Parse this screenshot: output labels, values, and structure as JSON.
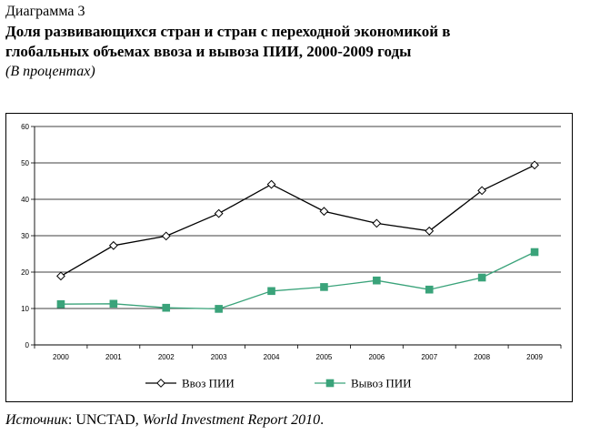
{
  "header": {
    "label": "Диаграмма 3",
    "title_line1": "Доля развивающихся стран и стран с переходной экономикой в",
    "title_line2": "глобальных объемах ввоза и вывоза ПИИ, 2000-2009 годы",
    "units": "(В процентах)"
  },
  "source": {
    "prefix": "Источник",
    "colon": ":  ",
    "org": "UNCTAD, ",
    "report": "World Investment Report 2010",
    "end": "."
  },
  "colors": {
    "inflow": "#000000",
    "outflow": "#3aa37a"
  },
  "chart_data": {
    "type": "line",
    "x": [
      "2000",
      "2001",
      "2002",
      "2003",
      "2004",
      "2005",
      "2006",
      "2007",
      "2008",
      "2009"
    ],
    "yticks": [
      "0",
      "10",
      "20",
      "30",
      "40",
      "50",
      "60"
    ],
    "ylim": [
      0,
      60
    ],
    "grid": true,
    "legend_position": "bottom",
    "series": [
      {
        "name": "Ввоз ПИИ",
        "marker": "diamond-open",
        "values": [
          18.9,
          27.3,
          29.9,
          36.1,
          44.1,
          36.7,
          33.4,
          31.3,
          42.4,
          49.4
        ]
      },
      {
        "name": "Вывоз ПИИ",
        "marker": "square-filled",
        "values": [
          11.2,
          11.3,
          10.2,
          9.9,
          14.8,
          15.9,
          17.7,
          15.2,
          18.5,
          25.5
        ]
      }
    ]
  }
}
